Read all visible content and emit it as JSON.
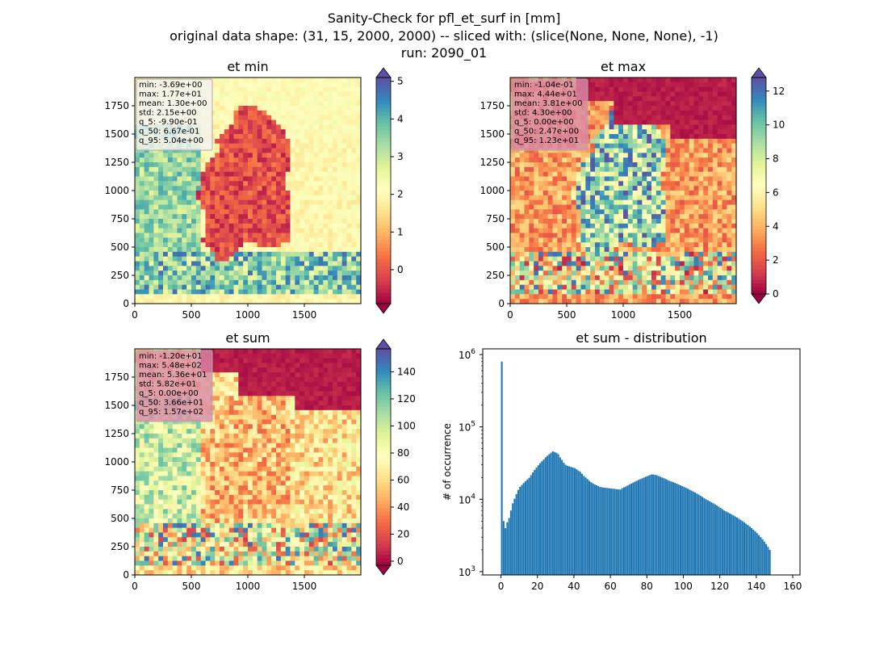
{
  "figure": {
    "title_lines": [
      "Sanity-Check for pfl_et_surf in [mm]",
      "original data shape: (31, 15, 2000, 2000) -- sliced with: (slice(None, None, None), -1)",
      "run: 2090_01"
    ]
  },
  "colors": {
    "histogram_bar": "#1f77b4",
    "stats_box_bg": "#d88aa8",
    "stats_box_bg_light": "#f3f1f2",
    "colormap": "Spectral",
    "colormap_stops": [
      "#9e0142",
      "#d53e4f",
      "#f46d43",
      "#fdae61",
      "#fee08b",
      "#ffffbf",
      "#e6f598",
      "#abdda4",
      "#66c2a5",
      "#3288bd",
      "#5e4fa2"
    ]
  },
  "chart_data": [
    {
      "id": "et_min",
      "type": "heatmap",
      "title": "et min",
      "x_ticks": [
        "0",
        "500",
        "1000",
        "1500"
      ],
      "y_ticks": [
        "0",
        "250",
        "500",
        "750",
        "1000",
        "1250",
        "1500",
        "1750"
      ],
      "xlim": [
        0,
        2000
      ],
      "ylim": [
        0,
        2000
      ],
      "colorbar": {
        "range": [
          -0.9,
          5.1
        ],
        "ticks": [
          "0",
          "1",
          "2",
          "3",
          "4",
          "5"
        ],
        "tick_values": [
          0,
          1,
          2,
          3,
          4,
          5
        ],
        "extend": "both"
      },
      "stats": [
        "min: -3.69e+00",
        "max: 1.77e+01",
        "mean: 1.30e+00",
        "std: 2.15e+00",
        "q_5: -9.90e-01",
        "q_50: 6.67e-01",
        "q_95: 5.04e+00"
      ],
      "stats_box_style": "light"
    },
    {
      "id": "et_max",
      "type": "heatmap",
      "title": "et max",
      "x_ticks": [
        "0",
        "500",
        "1000",
        "1500"
      ],
      "y_ticks": [
        "0",
        "250",
        "500",
        "750",
        "1000",
        "1250",
        "1500",
        "1750"
      ],
      "xlim": [
        0,
        2000
      ],
      "ylim": [
        0,
        2000
      ],
      "colorbar": {
        "range": [
          0,
          12.8
        ],
        "ticks": [
          "0",
          "2",
          "4",
          "6",
          "8",
          "10",
          "12"
        ],
        "tick_values": [
          0,
          2,
          4,
          6,
          8,
          10,
          12
        ],
        "extend": "both"
      },
      "stats": [
        "min: -1.04e-01",
        "max: 4.44e+01",
        "mean: 3.81e+00",
        "std: 4.30e+00",
        "q_5: 0.00e+00",
        "q_50: 2.47e+00",
        "q_95: 1.23e+01"
      ],
      "stats_box_style": "pink"
    },
    {
      "id": "et_sum",
      "type": "heatmap",
      "title": "et sum",
      "x_ticks": [
        "0",
        "500",
        "1000",
        "1500"
      ],
      "y_ticks": [
        "0",
        "250",
        "500",
        "750",
        "1000",
        "1250",
        "1500",
        "1750"
      ],
      "xlim": [
        0,
        2000
      ],
      "ylim": [
        0,
        2000
      ],
      "colorbar": {
        "range": [
          -3,
          157
        ],
        "ticks": [
          "0",
          "20",
          "40",
          "60",
          "80",
          "100",
          "120",
          "140"
        ],
        "tick_values": [
          0,
          20,
          40,
          60,
          80,
          100,
          120,
          140
        ],
        "extend": "both"
      },
      "stats": [
        "min: -1.20e+01",
        "max: 5.48e+02",
        "mean: 5.36e+01",
        "std: 5.82e+01",
        "q_5: 0.00e+00",
        "q_50: 3.66e+01",
        "q_95: 1.57e+02"
      ],
      "stats_box_style": "pink"
    },
    {
      "id": "et_sum_distribution",
      "type": "bar",
      "title": "et sum - distribution",
      "ylabel": "# of occurrence",
      "yscale": "log",
      "xlim": [
        -10,
        164
      ],
      "ylim": [
        900,
        1200000
      ],
      "x_ticks": [
        0,
        20,
        40,
        60,
        80,
        100,
        120,
        140,
        160
      ],
      "y_ticks": [
        {
          "value": 1000,
          "base": "10",
          "exp": "3"
        },
        {
          "value": 10000,
          "base": "10",
          "exp": "4"
        },
        {
          "value": 100000,
          "base": "10",
          "exp": "5"
        },
        {
          "value": 1000000,
          "base": "10",
          "exp": "6"
        }
      ],
      "bin_start": 0,
      "bin_width": 1,
      "values": [
        800000,
        5000,
        4000,
        4800,
        5500,
        7000,
        8800,
        10200,
        11800,
        13500,
        14800,
        15800,
        16800,
        17800,
        18800,
        19800,
        21500,
        23500,
        25500,
        27500,
        29500,
        31500,
        33500,
        35500,
        38000,
        40000,
        42000,
        44000,
        46000,
        45000,
        44000,
        42000,
        38000,
        35000,
        32000,
        30000,
        29000,
        28500,
        28000,
        27500,
        27000,
        26000,
        25000,
        24000,
        22500,
        21000,
        20000,
        19000,
        18000,
        17200,
        16600,
        16000,
        15600,
        15200,
        14800,
        14600,
        14500,
        14400,
        14300,
        14200,
        14100,
        14000,
        13900,
        13800,
        13700,
        13600,
        14200,
        14600,
        15000,
        15500,
        16000,
        16500,
        17000,
        17500,
        18000,
        18500,
        19000,
        19500,
        20000,
        20500,
        21000,
        21500,
        22000,
        22000,
        21800,
        21500,
        21000,
        20500,
        20000,
        19500,
        19000,
        18500,
        18000,
        17600,
        17200,
        16800,
        16400,
        16000,
        15600,
        15200,
        14800,
        14400,
        14000,
        13600,
        13200,
        12800,
        12400,
        12000,
        11600,
        11200,
        10800,
        10400,
        10000,
        9700,
        9400,
        9100,
        8800,
        8500,
        8200,
        7900,
        7600,
        7300,
        7000,
        6800,
        6600,
        6400,
        6200,
        6000,
        5800,
        5600,
        5400,
        5200,
        5000,
        4800,
        4600,
        4400,
        4200,
        4000,
        3800,
        3600,
        3400,
        3200,
        3000,
        2800,
        2600,
        2400,
        2200,
        2000
      ]
    }
  ]
}
